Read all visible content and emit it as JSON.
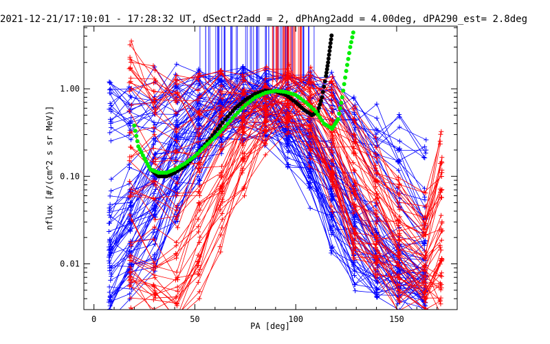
{
  "chart_data": {
    "type": "line",
    "title": "2021-12-21/17:10:01 - 17:28:32 UT, dSectr2add = 2, dPhAng2add = 4.00deg, dPA290_est=    2.8deg",
    "xlabel": "PA [deg]",
    "ylabel": "nflux [#/(cm^2 s sr MeV)]",
    "xlim": [
      -5,
      180
    ],
    "ylim": [
      0.003,
      5.2
    ],
    "yscale": "log",
    "x_ticks": [
      0,
      50,
      100,
      150
    ],
    "x_tick_labels": [
      "0",
      "50",
      "100",
      "150"
    ],
    "y_ticks": [
      0.01,
      0.1,
      1.0
    ],
    "y_tick_labels": [
      "0.01",
      "0.10",
      "1.00"
    ],
    "grid": false,
    "colors": {
      "blue_series": "#0000ff",
      "red_series": "#ff0000",
      "black_fit": "#000000",
      "green_fit": "#00ee00",
      "axes": "#000000"
    },
    "series": [
      {
        "color": "blue",
        "style": "line-plus-markers",
        "x": [
          8,
          18,
          30,
          41,
          52,
          63,
          74,
          85,
          96,
          107,
          118,
          129,
          140,
          151,
          164
        ],
        "y_curves_top": [
          [
            0.8,
            0.85,
            0.95,
            1.05,
            1.1,
            1.15,
            1.2,
            1.15,
            1.1,
            1.0,
            0.9,
            0.6,
            0.4,
            0.28,
            0.18
          ],
          [
            0.55,
            0.6,
            0.7,
            0.8,
            0.9,
            1.0,
            1.05,
            1.05,
            1.0,
            0.9,
            0.75,
            0.45,
            0.25,
            0.12,
            0.05
          ],
          [
            0.4,
            0.45,
            0.55,
            0.65,
            0.75,
            0.85,
            0.95,
            1.0,
            0.95,
            0.85,
            0.65,
            0.3,
            0.15,
            0.07,
            0.03
          ]
        ],
        "y_curves_mid": [
          [
            0.05,
            0.08,
            0.15,
            0.3,
            0.5,
            0.7,
            0.85,
            0.8,
            0.6,
            0.35,
            0.15,
            0.06,
            0.03,
            0.015,
            0.01
          ],
          [
            0.02,
            0.04,
            0.1,
            0.22,
            0.4,
            0.6,
            0.75,
            0.7,
            0.5,
            0.25,
            0.1,
            0.04,
            0.02,
            0.01,
            0.007
          ],
          [
            0.01,
            0.02,
            0.06,
            0.15,
            0.3,
            0.5,
            0.65,
            0.6,
            0.4,
            0.18,
            0.07,
            0.025,
            0.012,
            0.008,
            0.006
          ],
          [
            0.006,
            0.01,
            0.03,
            0.09,
            0.22,
            0.42,
            0.55,
            0.5,
            0.3,
            0.12,
            0.04,
            0.015,
            0.008,
            0.006,
            0.005
          ],
          [
            0.004,
            0.006,
            0.015,
            0.05,
            0.15,
            0.33,
            0.45,
            0.4,
            0.22,
            0.08,
            0.025,
            0.009,
            0.006,
            0.005,
            0.004
          ]
        ],
        "spikes_x_range": [
          52,
          110
        ]
      },
      {
        "color": "red",
        "style": "line-plus-markers",
        "x": [
          18,
          30,
          41,
          52,
          63,
          74,
          85,
          96,
          107,
          118,
          129,
          140,
          151,
          164,
          172
        ],
        "y_curves": [
          [
            2.4,
            1.0,
            0.9,
            0.85,
            0.9,
            0.95,
            1.0,
            1.05,
            1.0,
            0.8,
            0.4,
            0.15,
            0.07,
            0.04,
            0.18
          ],
          [
            1.0,
            0.7,
            0.55,
            0.5,
            0.6,
            0.75,
            0.9,
            0.95,
            0.9,
            0.6,
            0.25,
            0.09,
            0.04,
            0.02,
            0.08
          ],
          [
            0.3,
            0.2,
            0.15,
            0.2,
            0.35,
            0.55,
            0.75,
            0.85,
            0.75,
            0.4,
            0.12,
            0.05,
            0.025,
            0.012,
            0.04
          ],
          [
            0.08,
            0.05,
            0.04,
            0.08,
            0.2,
            0.4,
            0.6,
            0.7,
            0.55,
            0.25,
            0.07,
            0.03,
            0.015,
            0.008,
            0.02
          ],
          [
            0.02,
            0.015,
            0.012,
            0.03,
            0.1,
            0.28,
            0.5,
            0.6,
            0.4,
            0.15,
            0.04,
            0.018,
            0.01,
            0.006,
            0.01
          ],
          [
            0.008,
            0.006,
            0.006,
            0.012,
            0.05,
            0.18,
            0.4,
            0.5,
            0.3,
            0.09,
            0.025,
            0.012,
            0.007,
            0.005,
            0.006
          ],
          [
            0.005,
            0.004,
            0.004,
            0.007,
            0.025,
            0.1,
            0.3,
            0.42,
            0.2,
            0.05,
            0.015,
            0.008,
            0.005,
            0.004,
            0.004
          ]
        ],
        "spikes_x_range": [
          88,
          104
        ]
      },
      {
        "color": "black",
        "style": "dots",
        "x": [
          28,
          32,
          36,
          40,
          45,
          50,
          55,
          60,
          65,
          70,
          75,
          80,
          85,
          90,
          95,
          100,
          104,
          108,
          111,
          113,
          115,
          116,
          117,
          118
        ],
        "y": [
          0.12,
          0.1,
          0.1,
          0.11,
          0.13,
          0.17,
          0.23,
          0.32,
          0.45,
          0.6,
          0.75,
          0.88,
          0.95,
          0.93,
          0.85,
          0.7,
          0.58,
          0.5,
          0.55,
          0.8,
          1.4,
          2.0,
          3.0,
          4.5
        ]
      },
      {
        "color": "green",
        "style": "dots",
        "x": [
          20,
          22,
          25,
          28,
          32,
          36,
          40,
          45,
          50,
          55,
          60,
          65,
          70,
          75,
          80,
          85,
          90,
          95,
          100,
          105,
          110,
          114,
          118,
          121,
          123,
          125,
          127,
          129
        ],
        "y": [
          0.38,
          0.22,
          0.16,
          0.12,
          0.11,
          0.11,
          0.12,
          0.14,
          0.17,
          0.22,
          0.28,
          0.37,
          0.5,
          0.65,
          0.8,
          0.9,
          0.95,
          0.92,
          0.85,
          0.7,
          0.55,
          0.4,
          0.35,
          0.45,
          0.8,
          1.6,
          3.0,
          5.0
        ]
      }
    ]
  }
}
